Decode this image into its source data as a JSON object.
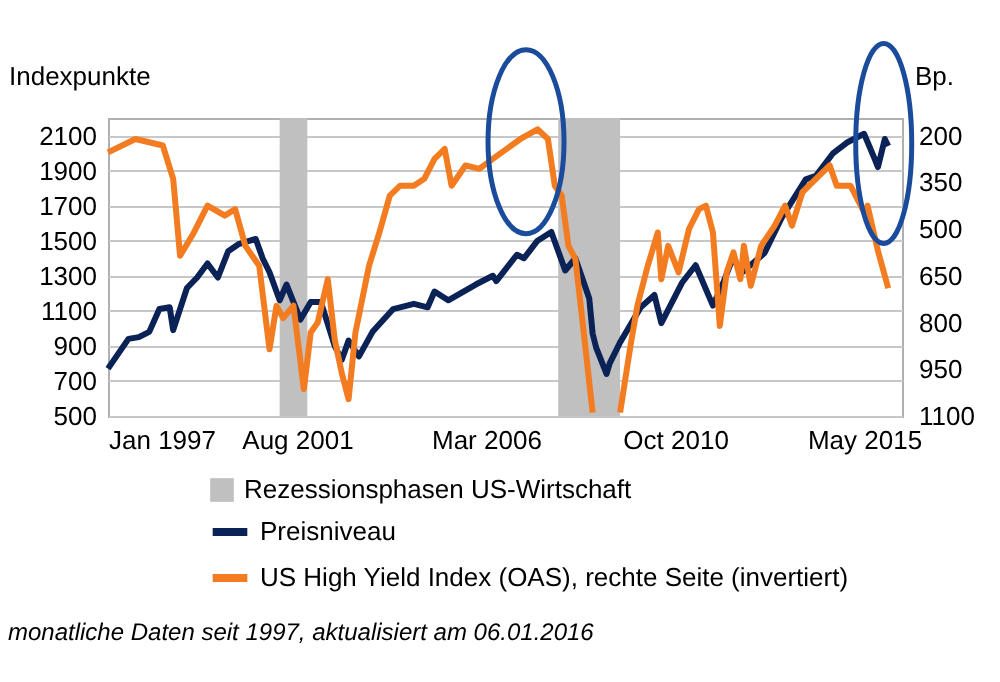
{
  "chart_data": {
    "type": "line",
    "ylabel": "Indexpunkte",
    "y2label": "Bp.",
    "xlim": [
      "1997-01",
      "2016-04"
    ],
    "xticks": [
      {
        "value": "1997-01",
        "label": "Jan 1997"
      },
      {
        "value": "2001-08",
        "label": "Aug 2001"
      },
      {
        "value": "2006-03",
        "label": "Mar 2006"
      },
      {
        "value": "2010-10",
        "label": "Oct 2010"
      },
      {
        "value": "2015-05",
        "label": "May 2015"
      }
    ],
    "ylim": [
      500,
      2200
    ],
    "yticks": [
      500,
      700,
      900,
      1100,
      1300,
      1500,
      1700,
      1900,
      2100
    ],
    "y2lim": [
      1100,
      143.75
    ],
    "y2ticks": [
      200,
      350,
      500,
      650,
      800,
      950,
      1100
    ],
    "grid": "y",
    "legend": "bottom",
    "bands": [
      {
        "axis": "x",
        "from": "2001-03",
        "to": "2001-11",
        "label": "Rezessionsphasen US-Wirtschaft",
        "color": "#c0c0c0"
      },
      {
        "axis": "x",
        "from": "2007-12",
        "to": "2009-06",
        "color": "#c0c0c0"
      }
    ],
    "series": [
      {
        "name": "Preisniveau",
        "color": "#0b2256",
        "x": [
          "1997-01",
          "1997-07",
          "1997-10",
          "1998-01",
          "1998-04",
          "1998-07",
          "1998-08",
          "1998-12",
          "1999-03",
          "1999-06",
          "1999-09",
          "1999-12",
          "2000-03",
          "2000-08",
          "2000-10",
          "2000-12",
          "2001-03",
          "2001-05",
          "2001-09",
          "2001-12",
          "2002-03",
          "2002-07",
          "2002-09",
          "2002-11",
          "2003-02",
          "2003-06",
          "2003-12",
          "2004-06",
          "2004-10",
          "2004-12",
          "2005-04",
          "2005-12",
          "2006-05",
          "2006-06",
          "2006-12",
          "2007-02",
          "2007-06",
          "2007-10",
          "2008-02",
          "2008-05",
          "2008-09",
          "2008-10",
          "2008-11",
          "2009-02",
          "2009-03",
          "2009-06",
          "2009-12",
          "2010-04",
          "2010-06",
          "2010-12",
          "2011-04",
          "2011-09",
          "2011-12",
          "2012-03",
          "2012-05",
          "2012-12",
          "2013-05",
          "2013-12",
          "2014-03",
          "2014-08",
          "2014-12",
          "2015-05",
          "2015-08",
          "2015-09",
          "2015-11",
          "2015-12"
        ],
        "values": [
          770,
          940,
          950,
          980,
          1110,
          1120,
          990,
          1230,
          1290,
          1370,
          1290,
          1440,
          1480,
          1510,
          1400,
          1320,
          1160,
          1250,
          1050,
          1150,
          1150,
          900,
          820,
          930,
          840,
          980,
          1110,
          1140,
          1120,
          1210,
          1160,
          1250,
          1300,
          1270,
          1420,
          1400,
          1500,
          1550,
          1330,
          1400,
          1170,
          970,
          890,
          740,
          800,
          920,
          1120,
          1190,
          1030,
          1260,
          1360,
          1130,
          1260,
          1410,
          1310,
          1430,
          1630,
          1850,
          1870,
          2000,
          2060,
          2110,
          1970,
          1920,
          2080,
          2040
        ]
      },
      {
        "name": "US High Yield Index (OAS), rechte Seite (invertiert)",
        "color": "#f47c20",
        "axis": "y2",
        "x": [
          "1997-01",
          "1997-09",
          "1998-05",
          "1998-08",
          "1998-10",
          "1999-02",
          "1999-06",
          "1999-11",
          "2000-02",
          "2000-05",
          "2000-09",
          "2000-12",
          "2001-02",
          "2001-04",
          "2001-07",
          "2001-10",
          "2001-12",
          "2002-02",
          "2002-05",
          "2002-07",
          "2002-09",
          "2002-11",
          "2003-01",
          "2003-05",
          "2003-08",
          "2003-11",
          "2004-02",
          "2004-06",
          "2004-09",
          "2004-12",
          "2005-03",
          "2005-05",
          "2005-09",
          "2006-01",
          "2006-05",
          "2006-09",
          "2007-01",
          "2007-06",
          "2007-09",
          "2007-11",
          "2008-01",
          "2008-03",
          "2008-05",
          "2008-07",
          "2008-10",
          "2008-11",
          "2009-05",
          "2009-06",
          "2009-09",
          "2009-11",
          "2010-02",
          "2010-05",
          "2010-06",
          "2010-08",
          "2010-11",
          "2011-02",
          "2011-05",
          "2011-07",
          "2011-09",
          "2011-11",
          "2012-01",
          "2012-03",
          "2012-05",
          "2012-06",
          "2012-08",
          "2012-11",
          "2013-03",
          "2013-06",
          "2013-08",
          "2013-11",
          "2014-03",
          "2014-07",
          "2014-09",
          "2015-01",
          "2015-05",
          "2015-06",
          "2015-09",
          "2015-12"
        ],
        "values": [
          254,
          211,
          232,
          339,
          586,
          511,
          425,
          457,
          436,
          554,
          618,
          886,
          746,
          786,
          746,
          1014,
          832,
          800,
          661,
          854,
          961,
          1046,
          832,
          618,
          511,
          393,
          361,
          361,
          339,
          275,
          243,
          361,
          296,
          307,
          275,
          243,
          211,
          180,
          211,
          361,
          393,
          554,
          596,
          789,
          1089,
          null,
          null,
          1089,
          875,
          746,
          618,
          511,
          661,
          554,
          639,
          500,
          436,
          425,
          511,
          811,
          639,
          575,
          661,
          554,
          682,
          554,
          489,
          425,
          489,
          382,
          339,
          296,
          361,
          361,
          446,
          425,
          570,
          690
        ]
      }
    ],
    "annotations": [
      "monatliche Daten seit 1997, aktualisiert am 06.01.2016"
    ]
  }
}
